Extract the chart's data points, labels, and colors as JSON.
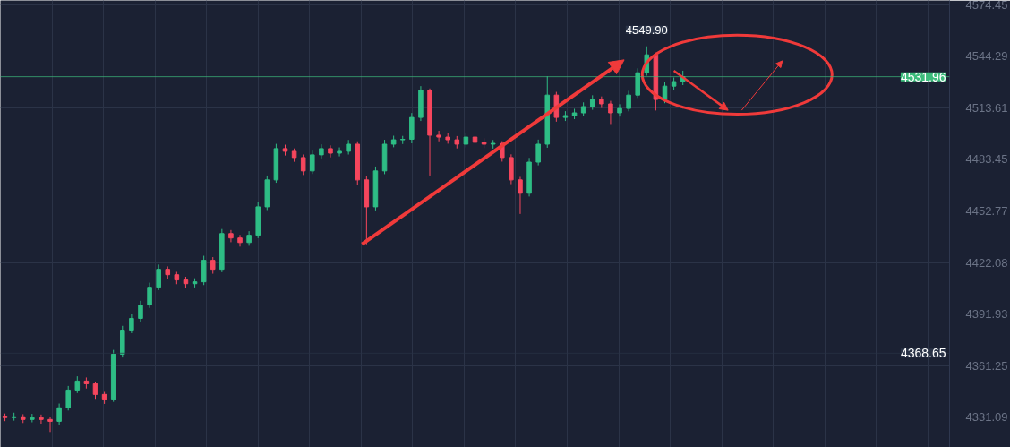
{
  "chart_data": {
    "type": "candlestick",
    "categories": [
      null,
      null,
      null,
      null,
      null,
      null,
      null,
      null,
      null,
      null,
      null,
      null,
      null,
      null,
      null,
      null,
      null,
      null,
      null,
      null,
      null,
      null,
      null,
      null,
      null,
      null,
      null,
      null,
      null,
      null,
      null,
      null,
      null,
      null,
      null,
      null,
      null,
      null,
      null,
      null,
      null,
      null,
      null,
      null,
      null,
      null,
      null,
      null,
      null,
      null,
      null,
      null,
      null,
      null,
      null,
      null,
      null,
      null,
      null,
      null,
      null,
      null,
      null,
      null,
      null,
      null,
      null,
      null,
      null,
      null,
      null,
      null,
      null,
      null,
      null,
      null,
      null,
      null,
      null,
      null,
      null,
      null,
      null,
      null,
      null,
      null,
      null,
      null,
      null,
      null,
      null,
      null,
      null,
      null,
      null,
      null,
      null,
      null,
      null,
      null,
      null,
      null,
      null,
      null,
      null
    ],
    "ohlc": [
      [
        4331.5,
        4333.0,
        4328.5,
        4330.6
      ],
      [
        4330.6,
        4333.5,
        4328.8,
        4331.1
      ],
      [
        4331.1,
        4332.6,
        4327.4,
        4329.5
      ],
      [
        4329.5,
        4332.8,
        4327.8,
        4330.6
      ],
      [
        4330.6,
        4332.4,
        4327.0,
        4329.5
      ],
      [
        4329.5,
        4331.2,
        4322.1,
        4328.4
      ],
      [
        4328.4,
        4338.9,
        4326.5,
        4336.4
      ],
      [
        4336.4,
        4349.3,
        4334.8,
        4346.9
      ],
      [
        4346.9,
        4355.0,
        4345.1,
        4352.2
      ],
      [
        4352.2,
        4354.3,
        4347.8,
        4350.6
      ],
      [
        4350.6,
        4351.9,
        4341.7,
        4344.3
      ],
      [
        4344.3,
        4345.8,
        4338.7,
        4341.6
      ],
      [
        4341.6,
        4370.6,
        4339.9,
        4368.0
      ],
      [
        4368.0,
        4384.8,
        4366.1,
        4382.3
      ],
      [
        4382.3,
        4391.8,
        4380.5,
        4389.2
      ],
      [
        4389.2,
        4399.6,
        4387.3,
        4397.1
      ],
      [
        4397.1,
        4410.3,
        4395.4,
        4407.6
      ],
      [
        4407.6,
        4421.0,
        4405.9,
        4418.2
      ],
      [
        4418.2,
        4419.9,
        4412.6,
        4415.0
      ],
      [
        4415.0,
        4416.7,
        4409.4,
        4411.9
      ],
      [
        4411.9,
        4413.8,
        4407.2,
        4409.7
      ],
      [
        4409.7,
        4412.9,
        4407.5,
        4410.8
      ],
      [
        4410.8,
        4426.2,
        4408.9,
        4423.5
      ],
      [
        4423.5,
        4425.4,
        4415.6,
        4418.2
      ],
      [
        4418.2,
        4442.0,
        4416.5,
        4439.3
      ],
      [
        4439.3,
        4441.4,
        4434.2,
        4436.7
      ],
      [
        4436.7,
        4438.5,
        4431.6,
        4434.0
      ],
      [
        4434.0,
        4440.7,
        4432.1,
        4438.3
      ],
      [
        4438.3,
        4457.8,
        4436.6,
        4455.1
      ],
      [
        4455.1,
        4473.6,
        4453.2,
        4471.0
      ],
      [
        4471.0,
        4492.3,
        4469.3,
        4489.5
      ],
      [
        4489.5,
        4491.8,
        4485.4,
        4487.9
      ],
      [
        4487.9,
        4489.6,
        4481.7,
        4484.2
      ],
      [
        4484.2,
        4486.0,
        4473.9,
        4476.3
      ],
      [
        4476.3,
        4488.3,
        4474.5,
        4485.8
      ],
      [
        4485.8,
        4492.0,
        4483.7,
        4489.5
      ],
      [
        4489.5,
        4491.4,
        4484.3,
        4486.8
      ],
      [
        4486.8,
        4490.2,
        4484.9,
        4487.9
      ],
      [
        4487.9,
        4494.6,
        4486.0,
        4492.1
      ],
      [
        4492.1,
        4493.8,
        4468.2,
        4471.0
      ],
      [
        4471.0,
        4473.2,
        4433.0,
        4455.1
      ],
      [
        4455.1,
        4478.9,
        4453.0,
        4476.3
      ],
      [
        4476.3,
        4494.7,
        4474.4,
        4492.1
      ],
      [
        4492.1,
        4497.1,
        4490.3,
        4494.7
      ],
      [
        4494.7,
        4497.0,
        4492.2,
        4495.0
      ],
      [
        4495.0,
        4510.5,
        4492.6,
        4507.9
      ],
      [
        4507.9,
        4526.4,
        4505.8,
        4523.8
      ],
      [
        4523.8,
        4525.0,
        4473.6,
        4497.4
      ],
      [
        4497.4,
        4500.0,
        4493.8,
        4496.3
      ],
      [
        4496.3,
        4498.6,
        4492.4,
        4494.7
      ],
      [
        4494.7,
        4496.9,
        4489.6,
        4492.1
      ],
      [
        4492.1,
        4498.8,
        4490.2,
        4496.3
      ],
      [
        4496.3,
        4498.4,
        4490.9,
        4493.2
      ],
      [
        4493.2,
        4495.6,
        4489.8,
        4492.1
      ],
      [
        4492.1,
        4494.6,
        4489.5,
        4492.6
      ],
      [
        4492.6,
        4493.9,
        4481.8,
        4484.2
      ],
      [
        4484.2,
        4486.1,
        4468.5,
        4471.0
      ],
      [
        4471.0,
        4472.8,
        4450.9,
        4463.1
      ],
      [
        4463.1,
        4484.0,
        4461.2,
        4481.5
      ],
      [
        4481.5,
        4494.8,
        4479.6,
        4492.1
      ],
      [
        4492.1,
        4532.2,
        4490.0,
        4521.1
      ],
      [
        4521.1,
        4523.0,
        4505.4,
        4507.9
      ],
      [
        4507.9,
        4511.6,
        4505.8,
        4509.0
      ],
      [
        4509.0,
        4513.0,
        4506.9,
        4510.6
      ],
      [
        4510.6,
        4516.8,
        4508.7,
        4514.3
      ],
      [
        4514.3,
        4521.0,
        4512.4,
        4518.5
      ],
      [
        4518.5,
        4520.3,
        4513.5,
        4515.9
      ],
      [
        4515.9,
        4517.7,
        4504.0,
        4510.6
      ],
      [
        4510.6,
        4515.7,
        4508.4,
        4513.2
      ],
      [
        4513.2,
        4523.6,
        4511.5,
        4521.1
      ],
      [
        4521.1,
        4536.9,
        4519.4,
        4534.3
      ],
      [
        4534.3,
        4549.9,
        4532.6,
        4544.9
      ],
      [
        4544.9,
        4546.2,
        4512.0,
        4518.5
      ],
      [
        4518.5,
        4528.8,
        4516.3,
        4526.4
      ],
      [
        4526.4,
        4531.5,
        4524.2,
        4529.1
      ],
      [
        4529.1,
        4535.5,
        4527.0,
        4532.0
      ],
      null,
      null,
      null,
      null,
      null,
      null,
      null,
      null,
      null,
      null,
      null,
      null,
      null,
      null,
      null,
      null,
      null,
      null,
      null,
      null,
      null,
      null,
      null,
      null,
      null,
      null,
      null,
      null,
      null
    ],
    "colors": [
      "#f6465d",
      "#2ebd85",
      "#f6465d",
      "#2ebd85",
      "#f6465d",
      "#f6465d",
      "#2ebd85",
      "#2ebd85",
      "#2ebd85",
      "#f6465d",
      "#f6465d",
      "#f6465d",
      "#2ebd85",
      "#2ebd85",
      "#2ebd85",
      "#2ebd85",
      "#2ebd85",
      "#2ebd85",
      "#f6465d",
      "#f6465d",
      "#f6465d",
      "#2ebd85",
      "#2ebd85",
      "#f6465d",
      "#2ebd85",
      "#f6465d",
      "#f6465d",
      "#2ebd85",
      "#2ebd85",
      "#2ebd85",
      "#2ebd85",
      "#f6465d",
      "#f6465d",
      "#f6465d",
      "#2ebd85",
      "#2ebd85",
      "#f6465d",
      "#2ebd85",
      "#2ebd85",
      "#f6465d",
      "#f6465d",
      "#2ebd85",
      "#2ebd85",
      "#2ebd85",
      "#2ebd85",
      "#2ebd85",
      "#2ebd85",
      "#f6465d",
      "#f6465d",
      "#f6465d",
      "#f6465d",
      "#2ebd85",
      "#f6465d",
      "#f6465d",
      "#2ebd85",
      "#f6465d",
      "#f6465d",
      "#f6465d",
      "#2ebd85",
      "#2ebd85",
      "#2ebd85",
      "#f6465d",
      "#2ebd85",
      "#2ebd85",
      "#2ebd85",
      "#2ebd85",
      "#f6465d",
      "#f6465d",
      "#2ebd85",
      "#2ebd85",
      "#2ebd85",
      "#2ebd85",
      "#f6465d",
      "#2ebd85",
      "#2ebd85",
      "#2ebd85",
      null,
      null,
      null,
      null,
      null,
      null,
      null,
      null,
      null,
      null,
      null,
      null,
      null,
      null,
      null,
      null,
      null,
      null,
      null,
      null,
      null,
      null,
      null,
      null,
      null,
      null,
      null,
      null,
      null
    ],
    "ylim": [
      4313.0,
      4577.0
    ],
    "yticks": [
      4331.09,
      4361.25,
      4391.93,
      4422.08,
      4452.77,
      4483.45,
      4513.61,
      4544.29,
      4574.45
    ],
    "annotations": [
      {
        "text": "4549.90",
        "y": 4549.9
      }
    ],
    "ref_lines": [
      {
        "axis": "y",
        "value": 4531.96,
        "label": "4531.96",
        "color": "#3dbc7c"
      },
      {
        "axis": "y",
        "value": 4368.65,
        "label": "4368.65",
        "color": "#2a3347"
      }
    ],
    "grid": true,
    "tick_labels": "y"
  }
}
